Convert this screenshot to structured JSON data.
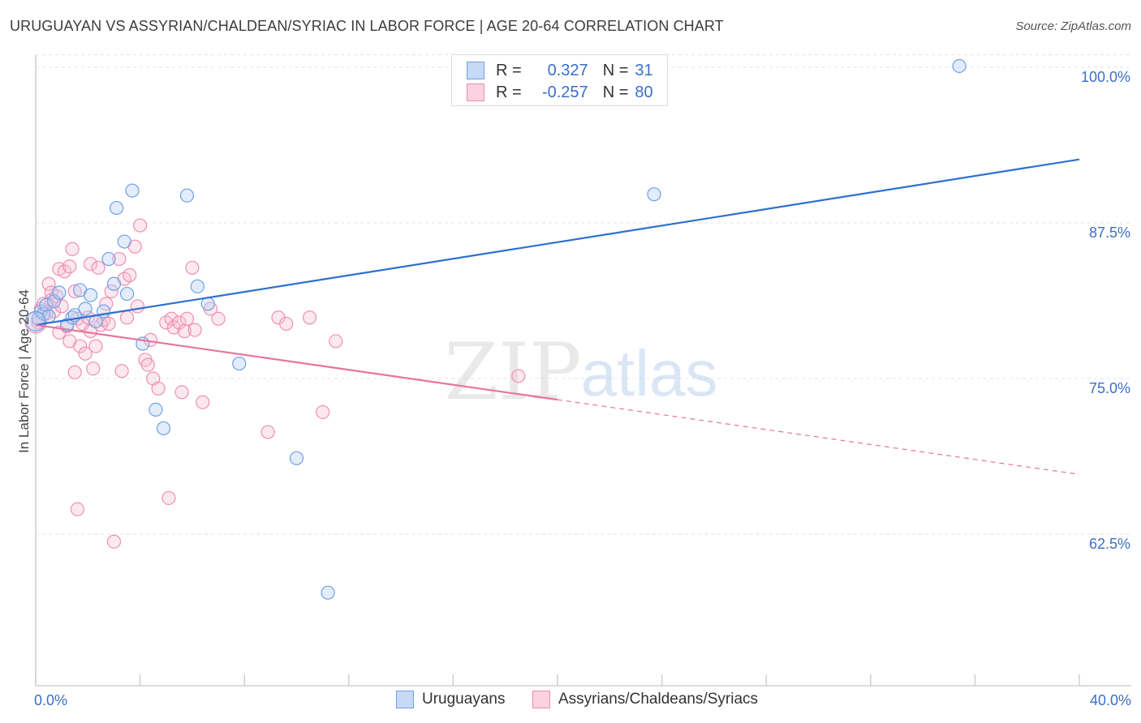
{
  "title": "URUGUAYAN VS ASSYRIAN/CHALDEAN/SYRIAC IN LABOR FORCE | AGE 20-64 CORRELATION CHART",
  "source": "Source: ZipAtlas.com",
  "watermark": {
    "zip": "ZIP",
    "atlas": "atlas"
  },
  "legend": {
    "r_label": "R =",
    "n_label": "N =",
    "series": [
      {
        "r": "0.327",
        "n": "31"
      },
      {
        "r": "-0.257",
        "n": "80"
      }
    ]
  },
  "chart_data": {
    "type": "scatter",
    "xlabel": "",
    "ylabel": "In Labor Force | Age 20-64",
    "xlim": [
      0,
      40
    ],
    "ylim": [
      54,
      101
    ],
    "x_tick_labels": [
      "0.0%",
      "40.0%"
    ],
    "y_ticks": [
      62.5,
      75.0,
      87.5,
      100.0
    ],
    "y_tick_labels": [
      "62.5%",
      "75.0%",
      "87.5%",
      "100.0%"
    ],
    "grid": "horizontal dashed",
    "legend_position": "top-center",
    "colors": {
      "uruguayans": "#6fa0e6",
      "assyrians": "#f08cb0",
      "blue_line": "#2e6fd0",
      "pink_line": "#e8749e",
      "tick_label": "#3a6fc9"
    },
    "series": [
      {
        "name": "Uruguayans",
        "color": "#6fa0e6",
        "r": 0.327,
        "n": 31,
        "trend": {
          "x": [
            0.0,
            40.0
          ],
          "y": [
            79.3,
            92.6
          ]
        },
        "points": [
          [
            0.1,
            79.8
          ],
          [
            0.2,
            80.4
          ],
          [
            0.3,
            80.2
          ],
          [
            0.4,
            80.9
          ],
          [
            0.5,
            80.0
          ],
          [
            0.7,
            81.2
          ],
          [
            0.9,
            81.9
          ],
          [
            1.2,
            79.3
          ],
          [
            1.4,
            79.9
          ],
          [
            1.5,
            80.1
          ],
          [
            1.7,
            82.1
          ],
          [
            1.9,
            80.6
          ],
          [
            2.1,
            81.7
          ],
          [
            2.3,
            79.6
          ],
          [
            2.6,
            80.4
          ],
          [
            2.8,
            84.6
          ],
          [
            3.0,
            82.6
          ],
          [
            3.1,
            88.7
          ],
          [
            3.4,
            86.0
          ],
          [
            3.5,
            81.8
          ],
          [
            3.7,
            90.1
          ],
          [
            4.1,
            77.8
          ],
          [
            4.6,
            72.5
          ],
          [
            4.9,
            71.0
          ],
          [
            5.8,
            89.7
          ],
          [
            6.2,
            82.4
          ],
          [
            6.6,
            81.0
          ],
          [
            7.8,
            76.2
          ],
          [
            10.0,
            68.6
          ],
          [
            11.2,
            57.8
          ],
          [
            23.7,
            89.8
          ],
          [
            35.4,
            100.1
          ]
        ]
      },
      {
        "name": "Assyrians/Chaldeans/Syriacs",
        "color": "#f08cb0",
        "r": -0.257,
        "n": 80,
        "trend": {
          "x": [
            0.0,
            20.0,
            40.0
          ],
          "y": [
            79.3,
            73.3,
            67.3
          ],
          "solid_until": 20.0
        },
        "points": [
          [
            0.1,
            79.5
          ],
          [
            0.2,
            80.6
          ],
          [
            0.3,
            81.0
          ],
          [
            0.4,
            80.2
          ],
          [
            0.5,
            82.6
          ],
          [
            0.6,
            81.3
          ],
          [
            0.6,
            81.9
          ],
          [
            0.7,
            80.4
          ],
          [
            0.8,
            81.6
          ],
          [
            0.9,
            78.7
          ],
          [
            0.9,
            83.8
          ],
          [
            1.0,
            80.8
          ],
          [
            1.1,
            83.6
          ],
          [
            1.2,
            79.2
          ],
          [
            1.3,
            84.0
          ],
          [
            1.3,
            78.0
          ],
          [
            1.4,
            85.4
          ],
          [
            1.5,
            82.0
          ],
          [
            1.5,
            75.5
          ],
          [
            1.6,
            79.8
          ],
          [
            1.6,
            64.5
          ],
          [
            1.7,
            77.6
          ],
          [
            1.8,
            79.4
          ],
          [
            1.9,
            77.0
          ],
          [
            2.0,
            79.9
          ],
          [
            2.1,
            78.8
          ],
          [
            2.1,
            84.2
          ],
          [
            2.2,
            75.8
          ],
          [
            2.3,
            77.6
          ],
          [
            2.4,
            83.9
          ],
          [
            2.5,
            79.3
          ],
          [
            2.6,
            79.7
          ],
          [
            2.7,
            81.0
          ],
          [
            2.8,
            79.4
          ],
          [
            2.9,
            82.0
          ],
          [
            3.0,
            61.9
          ],
          [
            3.2,
            84.6
          ],
          [
            3.3,
            75.6
          ],
          [
            3.4,
            83.0
          ],
          [
            3.5,
            79.9
          ],
          [
            3.6,
            83.3
          ],
          [
            3.8,
            85.6
          ],
          [
            3.9,
            80.8
          ],
          [
            4.0,
            87.3
          ],
          [
            4.2,
            76.5
          ],
          [
            4.3,
            76.1
          ],
          [
            4.4,
            78.1
          ],
          [
            4.5,
            75.0
          ],
          [
            4.7,
            74.2
          ],
          [
            5.0,
            79.5
          ],
          [
            5.1,
            65.4
          ],
          [
            5.2,
            79.8
          ],
          [
            5.3,
            79.1
          ],
          [
            5.5,
            79.5
          ],
          [
            5.6,
            73.9
          ],
          [
            5.7,
            78.8
          ],
          [
            5.8,
            79.8
          ],
          [
            6.0,
            83.9
          ],
          [
            6.1,
            78.9
          ],
          [
            6.4,
            73.1
          ],
          [
            6.7,
            80.6
          ],
          [
            7.0,
            79.8
          ],
          [
            8.9,
            70.7
          ],
          [
            9.3,
            79.9
          ],
          [
            9.6,
            79.4
          ],
          [
            10.5,
            79.9
          ],
          [
            11.0,
            72.3
          ],
          [
            11.5,
            78.0
          ],
          [
            18.5,
            75.2
          ]
        ]
      }
    ]
  }
}
